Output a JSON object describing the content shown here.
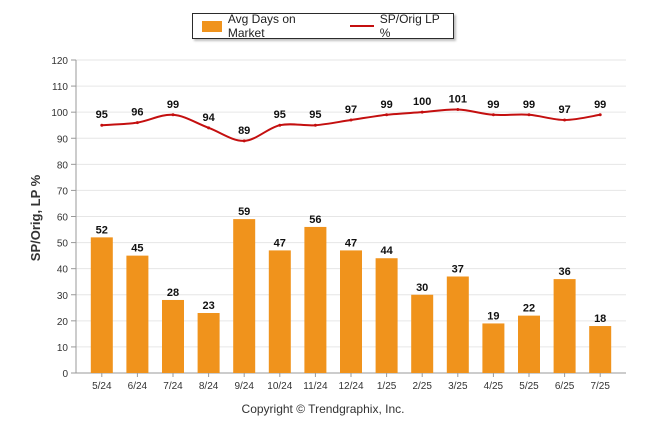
{
  "legend": {
    "bar_label": "Avg Days on Market",
    "line_label": "SP/Orig LP %"
  },
  "footer": {
    "copyright": "Copyright © Trendgraphix, Inc."
  },
  "colors": {
    "bar": "#f0931c",
    "line": "#c40f0f",
    "grid": "#e6e6e6"
  },
  "chart_data": {
    "type": "bar",
    "categories": [
      "5/24",
      "6/24",
      "7/24",
      "8/24",
      "9/24",
      "10/24",
      "11/24",
      "12/24",
      "1/25",
      "2/25",
      "3/25",
      "4/25",
      "5/25",
      "6/25",
      "7/25"
    ],
    "series": [
      {
        "name": "Avg Days on Market",
        "type": "bar",
        "values": [
          52,
          45,
          28,
          23,
          59,
          47,
          56,
          47,
          44,
          30,
          37,
          19,
          22,
          36,
          18
        ]
      },
      {
        "name": "SP/Orig LP %",
        "type": "line",
        "values": [
          95,
          96,
          99,
          94,
          89,
          95,
          95,
          97,
          99,
          100,
          101,
          99,
          99,
          97,
          99
        ]
      }
    ],
    "ylabel": "SP/Orig, LP %",
    "xlabel": "",
    "ylim": [
      0,
      120
    ],
    "yticks": [
      0,
      10,
      20,
      30,
      40,
      50,
      60,
      70,
      80,
      90,
      100,
      110,
      120
    ],
    "grid": true,
    "legend_position": "top-center"
  }
}
